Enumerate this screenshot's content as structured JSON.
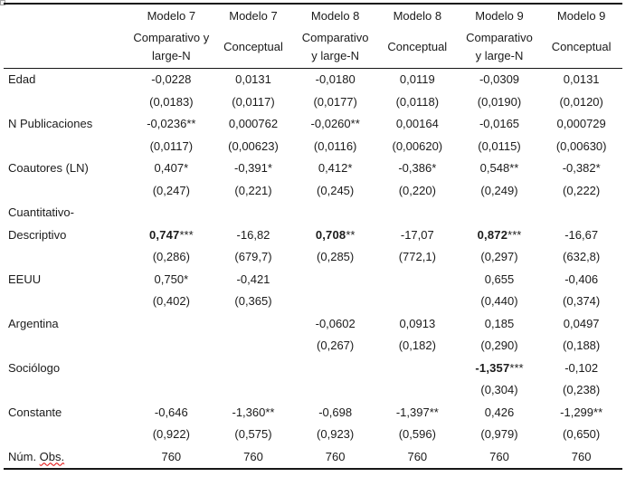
{
  "colors": {
    "text": "#1b1b1b",
    "rule": "#161616",
    "spellcheck_underline": "#e00000",
    "anchor_handle": "#a0a0a0",
    "background": "#ffffff"
  },
  "table": {
    "header": {
      "columns": [
        {
          "model": "Modelo 7",
          "lines": [
            "Comparativo  y",
            "large-N"
          ]
        },
        {
          "model": "Modelo 7",
          "lines": [
            "Conceptual"
          ]
        },
        {
          "model": "Modelo 8",
          "lines": [
            "Comparativo",
            "y large-N"
          ]
        },
        {
          "model": "Modelo 8",
          "lines": [
            "Conceptual"
          ]
        },
        {
          "model": "Modelo 9",
          "lines": [
            "Comparativo",
            "y large-N"
          ]
        },
        {
          "model": "Modelo 9",
          "lines": [
            "Conceptual"
          ]
        }
      ]
    },
    "rows": [
      {
        "label_lines": [
          "Edad"
        ],
        "coef": [
          {
            "v": "-0,0228"
          },
          {
            "v": "0,0131"
          },
          {
            "v": "-0,0180"
          },
          {
            "v": "0,0119"
          },
          {
            "v": "-0,0309"
          },
          {
            "v": "0,0131"
          }
        ],
        "se": [
          "(0,0183)",
          "(0,0117)",
          "(0,0177)",
          "(0,0118)",
          "(0,0190)",
          "(0,0120)"
        ]
      },
      {
        "label_lines": [
          "N Publicaciones"
        ],
        "coef": [
          {
            "v": "-0,0236",
            "s": "**"
          },
          {
            "v": "0,000762"
          },
          {
            "v": "-0,0260",
            "s": "**"
          },
          {
            "v": "0,00164"
          },
          {
            "v": "-0,0165"
          },
          {
            "v": "0,000729"
          }
        ],
        "se": [
          "(0,0117)",
          "(0,00623)",
          "(0,0116)",
          "(0,00620)",
          "(0,0115)",
          "(0,00630)"
        ]
      },
      {
        "label_lines": [
          "Coautores (LN)"
        ],
        "coef": [
          {
            "v": "0,407",
            "s": "*"
          },
          {
            "v": "-0,391",
            "s": "*"
          },
          {
            "v": "0,412",
            "s": "*"
          },
          {
            "v": "-0,386",
            "s": "*"
          },
          {
            "v": "0,548",
            "s": "**"
          },
          {
            "v": "-0,382",
            "s": "*"
          }
        ],
        "se": [
          "(0,247)",
          "(0,221)",
          "(0,245)",
          "(0,220)",
          "(0,249)",
          "(0,222)"
        ]
      },
      {
        "label_lines": [
          "Cuantitativo-",
          "Descriptivo"
        ],
        "coef": [
          {
            "v": "0,747",
            "s": "***",
            "b": true
          },
          {
            "v": "-16,82"
          },
          {
            "v": "0,708",
            "s": "**",
            "b": true
          },
          {
            "v": "-17,07"
          },
          {
            "v": "0,872",
            "s": "***",
            "b": true
          },
          {
            "v": "-16,67"
          }
        ],
        "se": [
          "(0,286)",
          "(679,7)",
          "(0,285)",
          "(772,1)",
          "(0,297)",
          "(632,8)"
        ]
      },
      {
        "label_lines": [
          "EEUU"
        ],
        "coef": [
          {
            "v": "0,750",
            "s": "*"
          },
          {
            "v": "-0,421"
          },
          null,
          null,
          {
            "v": "0,655"
          },
          {
            "v": "-0,406"
          }
        ],
        "se": [
          "(0,402)",
          "(0,365)",
          "",
          "",
          "(0,440)",
          "(0,374)"
        ]
      },
      {
        "label_lines": [
          "Argentina"
        ],
        "coef": [
          null,
          null,
          {
            "v": "-0,0602"
          },
          {
            "v": "0,0913"
          },
          {
            "v": "0,185"
          },
          {
            "v": "0,0497"
          }
        ],
        "se": [
          "",
          "",
          "(0,267)",
          "(0,182)",
          "(0,290)",
          "(0,188)"
        ]
      },
      {
        "label_lines": [
          "Sociólogo"
        ],
        "coef": [
          null,
          null,
          null,
          null,
          {
            "v": "-1,357",
            "s": "***",
            "b": true
          },
          {
            "v": "-0,102"
          }
        ],
        "se": [
          "",
          "",
          "",
          "",
          "(0,304)",
          "(0,238)"
        ]
      },
      {
        "label_lines": [
          "Constante"
        ],
        "coef": [
          {
            "v": "-0,646"
          },
          {
            "v": "-1,360",
            "s": "**"
          },
          {
            "v": "-0,698"
          },
          {
            "v": "-1,397",
            "s": "**"
          },
          {
            "v": "0,426"
          },
          {
            "v": "-1,299",
            "s": "**"
          }
        ],
        "se": [
          "(0,922)",
          "(0,575)",
          "(0,923)",
          "(0,596)",
          "(0,979)",
          "(0,650)"
        ]
      }
    ],
    "footer": {
      "label_prefix": "Núm. ",
      "label_misspelled": "Obs.",
      "values": [
        "760",
        "760",
        "760",
        "760",
        "760",
        "760"
      ]
    }
  }
}
